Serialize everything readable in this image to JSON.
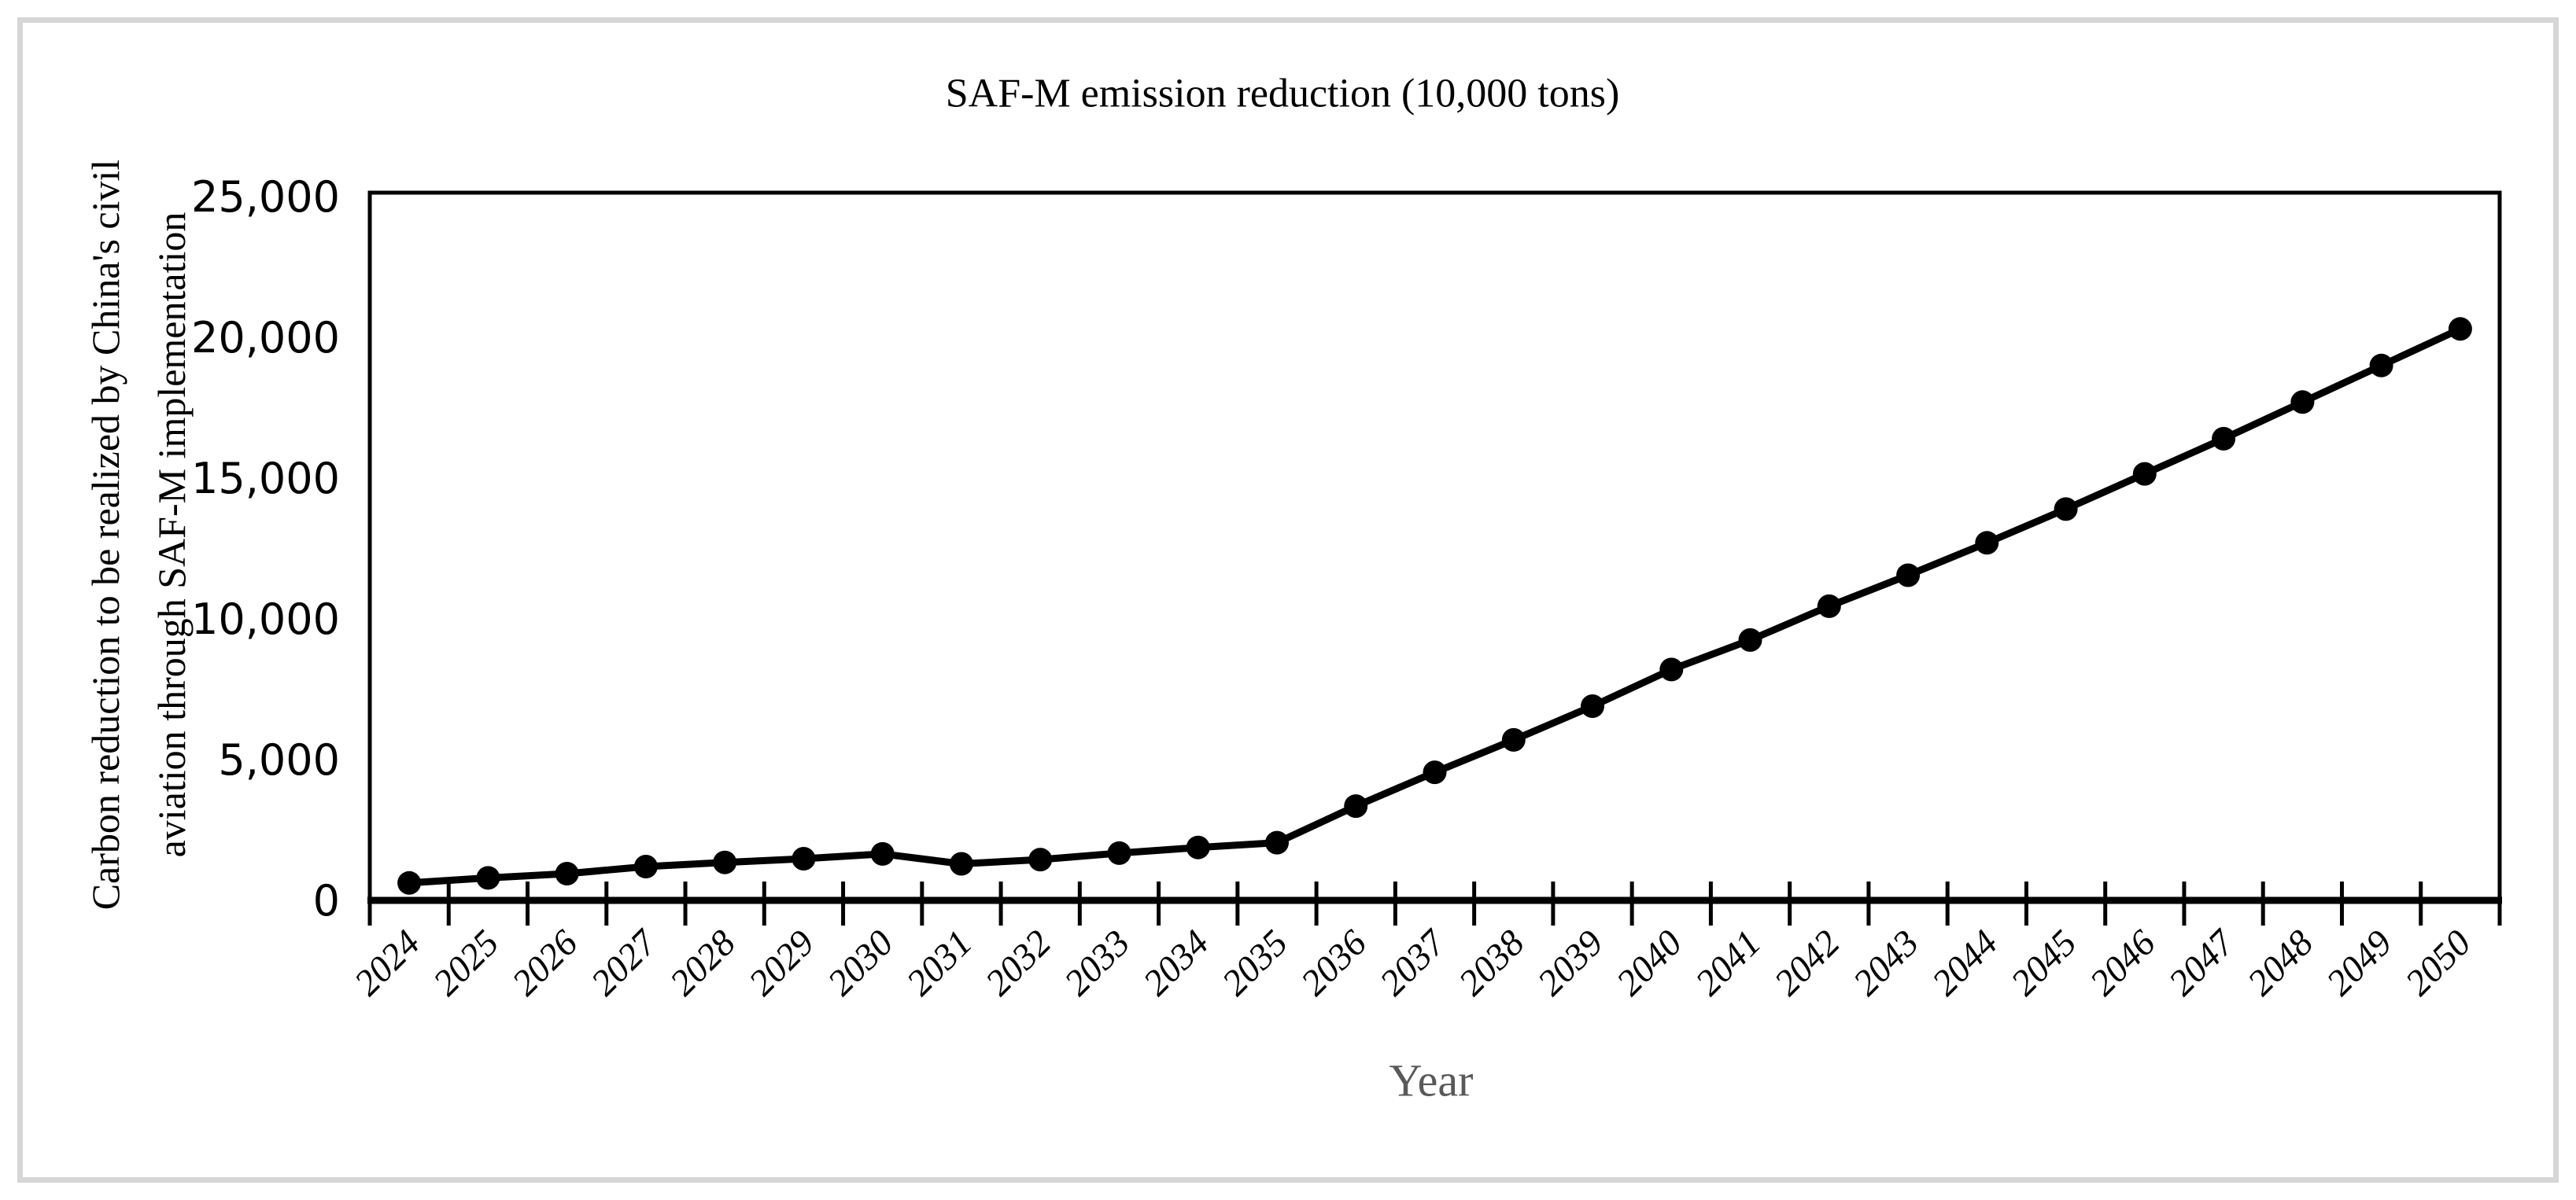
{
  "figure": {
    "title": "SAF-M emission reduction (10,000 tons)",
    "x_axis_label": "Year",
    "y_axis_label": "Carbon reduction to be realized by China's civil aviation through SAF-M implementation",
    "y_axis_label_line1": "Carbon reduction to be realized by China's civil",
    "y_axis_label_line2": "aviation through SAF-M implementation",
    "frame_border_color": "#d6d6d6",
    "axis_color": "#000000",
    "x_axis_title_color": "#595959"
  },
  "chart_data": {
    "type": "line",
    "title": "SAF-M emission reduction (10,000 tons)",
    "xlabel": "Year",
    "ylabel": "Carbon reduction to be realized by China's civil aviation through SAF-M implementation",
    "categories": [
      "2024",
      "2025",
      "2026",
      "2027",
      "2028",
      "2029",
      "2030",
      "2031",
      "2032",
      "2033",
      "2034",
      "2035",
      "2036",
      "2037",
      "2038",
      "2039",
      "2040",
      "2041",
      "2042",
      "2043",
      "2044",
      "2045",
      "2046",
      "2047",
      "2048",
      "2049",
      "2050"
    ],
    "series": [
      {
        "name": "SAF-M emission reduction",
        "values": [
          620,
          800,
          950,
          1200,
          1350,
          1480,
          1650,
          1300,
          1450,
          1680,
          1880,
          2050,
          3350,
          4550,
          5700,
          6900,
          8200,
          9250,
          10450,
          11550,
          12700,
          13900,
          15150,
          16400,
          17700,
          19000,
          20300
        ]
      }
    ],
    "ylim": [
      0,
      25000
    ],
    "yticks": [
      0,
      5000,
      10000,
      15000,
      20000,
      25000
    ],
    "ytick_labels": [
      "0",
      "5,000",
      "10,000",
      "15,000",
      "20,000",
      "25,000"
    ],
    "grid": false,
    "legend_position": "none",
    "line_color": "#000000",
    "marker": "circle",
    "marker_color": "#000000"
  }
}
